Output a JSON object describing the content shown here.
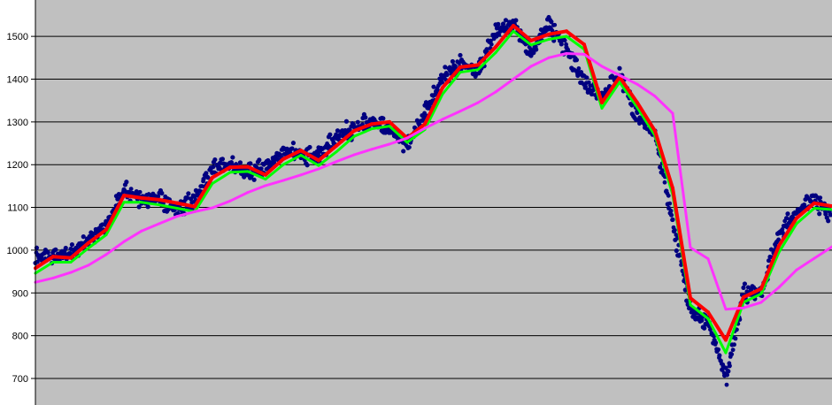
{
  "chart_data": {
    "type": "line",
    "title": "",
    "xlabel": "",
    "ylabel": "",
    "ylim": [
      638,
      1585
    ],
    "yticks": [
      700,
      800,
      900,
      1000,
      1100,
      1200,
      1300,
      1400,
      1500
    ],
    "ytick_labels": [
      "700",
      "800",
      "900",
      "1000",
      "1100",
      "1200",
      "1300",
      "1400",
      "1500"
    ],
    "grid": "horizontal",
    "legend": "none",
    "plot_background": "#c0c0c0",
    "series": [
      {
        "role": "price",
        "color": "#000080",
        "style": "markers",
        "values": [
          985,
          985,
          990,
          1025,
          1060,
          1140,
          1120,
          1120,
          1095,
          1120,
          1190,
          1200,
          1180,
          1195,
          1230,
          1225,
          1220,
          1265,
          1285,
          1300,
          1280,
          1245,
          1320,
          1405,
          1435,
          1420,
          1510,
          1530,
          1460,
          1530,
          1470,
          1390,
          1360,
          1410,
          1310,
          1270,
          1060,
          860,
          830,
          700,
          900,
          900,
          1040,
          1090,
          1120,
          1080
        ]
      },
      {
        "role": "short moving average (lagged)",
        "color": "#00ff00",
        "style": "line",
        "values": [
          946,
          972,
          972,
          1005,
          1036,
          1112,
          1112,
          1106,
          1098,
          1090,
          1156,
          1182,
          1184,
          1166,
          1200,
          1222,
          1198,
          1230,
          1266,
          1284,
          1290,
          1252,
          1282,
          1365,
          1416,
          1422,
          1462,
          1512,
          1480,
          1493,
          1500,
          1470,
          1332,
          1393,
          1334,
          1268,
          1130,
          872,
          840,
          760,
          878,
          898,
          995,
          1062,
          1098,
          1095
        ]
      },
      {
        "role": "short moving average",
        "color": "#ff0000",
        "style": "line",
        "values": [
          958,
          985,
          982,
          1017,
          1048,
          1128,
          1122,
          1118,
          1110,
          1102,
          1170,
          1194,
          1195,
          1176,
          1213,
          1233,
          1210,
          1244,
          1279,
          1295,
          1300,
          1262,
          1295,
          1380,
          1428,
          1433,
          1475,
          1525,
          1490,
          1505,
          1512,
          1481,
          1345,
          1405,
          1345,
          1279,
          1145,
          888,
          855,
          790,
          890,
          910,
          1010,
          1075,
          1110,
          1103
        ]
      },
      {
        "role": "long moving average",
        "color": "#ff33ff",
        "style": "line",
        "values": [
          925,
          935,
          948,
          965,
          990,
          1020,
          1045,
          1062,
          1079,
          1090,
          1099,
          1115,
          1135,
          1151,
          1163,
          1176,
          1190,
          1207,
          1223,
          1236,
          1248,
          1262,
          1285,
          1306,
          1325,
          1345,
          1370,
          1400,
          1430,
          1450,
          1460,
          1458,
          1430,
          1409,
          1388,
          1360,
          1320,
          1006,
          980,
          862,
          865,
          878,
          913,
          954,
          981,
          1008
        ]
      }
    ]
  }
}
